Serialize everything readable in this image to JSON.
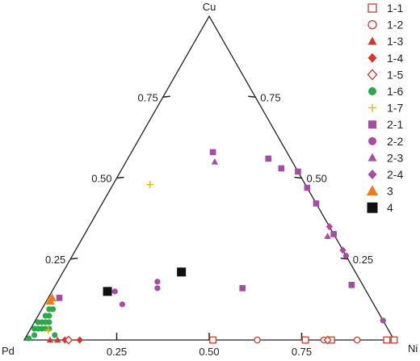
{
  "chart_data": {
    "type": "ternary-scatter",
    "vertices": {
      "top": "Cu",
      "left": "Pd",
      "right": "Ni"
    },
    "ticks": [
      0.25,
      0.5,
      0.75
    ],
    "tick_labels": {
      "left_edge": [
        "0.25",
        "0.50",
        "0.75"
      ],
      "right_edge": [
        "0.75",
        "0.50",
        "0.25"
      ],
      "bottom_edge": [
        "0.25",
        "0.50",
        "0.75"
      ]
    },
    "series": [
      {
        "name": "1-1",
        "marker": "square-open",
        "color": "#d9362b",
        "points": [
          {
            "Pd": 0.49,
            "Cu": 0.0,
            "Ni": 0.51
          },
          {
            "Pd": 0.24,
            "Cu": 0.0,
            "Ni": 0.76
          },
          {
            "Pd": 0.17,
            "Cu": 0.0,
            "Ni": 0.83
          },
          {
            "Pd": 0.02,
            "Cu": 0.0,
            "Ni": 0.98
          },
          {
            "Pd": 0.0,
            "Cu": 0.0,
            "Ni": 1.0
          }
        ]
      },
      {
        "name": "1-2",
        "marker": "circle-open",
        "color": "#d9362b",
        "points": [
          {
            "Pd": 0.37,
            "Cu": 0.0,
            "Ni": 0.63
          },
          {
            "Pd": 0.19,
            "Cu": 0.0,
            "Ni": 0.81
          },
          {
            "Pd": 0.1,
            "Cu": 0.0,
            "Ni": 0.9
          }
        ]
      },
      {
        "name": "1-3",
        "marker": "triangle",
        "color": "#d9362b",
        "points": [
          {
            "Pd": 0.93,
            "Cu": 0.0,
            "Ni": 0.07
          },
          {
            "Pd": 0.91,
            "Cu": 0.0,
            "Ni": 0.09
          }
        ]
      },
      {
        "name": "1-4",
        "marker": "diamond",
        "color": "#d9362b",
        "points": [
          {
            "Pd": 0.89,
            "Cu": 0.0,
            "Ni": 0.11
          },
          {
            "Pd": 0.85,
            "Cu": 0.0,
            "Ni": 0.15
          }
        ]
      },
      {
        "name": "1-5",
        "marker": "diamond-open",
        "color": "#d9362b",
        "points": [
          {
            "Pd": 0.88,
            "Cu": 0.0,
            "Ni": 0.12
          },
          {
            "Pd": 0.18,
            "Cu": 0.0,
            "Ni": 0.82
          }
        ]
      },
      {
        "name": "1-6",
        "marker": "circle",
        "color": "#2aa84a",
        "points": [
          {
            "Pd": 0.985,
            "Cu": 0.005,
            "Ni": 0.01
          },
          {
            "Pd": 0.965,
            "Cu": 0.015,
            "Ni": 0.02
          },
          {
            "Pd": 0.955,
            "Cu": 0.035,
            "Ni": 0.01
          },
          {
            "Pd": 0.945,
            "Cu": 0.035,
            "Ni": 0.02
          },
          {
            "Pd": 0.935,
            "Cu": 0.035,
            "Ni": 0.03
          },
          {
            "Pd": 0.925,
            "Cu": 0.035,
            "Ni": 0.04
          },
          {
            "Pd": 0.915,
            "Cu": 0.035,
            "Ni": 0.05
          },
          {
            "Pd": 0.91,
            "Cu": 0.015,
            "Ni": 0.075
          },
          {
            "Pd": 0.935,
            "Cu": 0.055,
            "Ni": 0.01
          },
          {
            "Pd": 0.925,
            "Cu": 0.055,
            "Ni": 0.02
          },
          {
            "Pd": 0.915,
            "Cu": 0.055,
            "Ni": 0.03
          },
          {
            "Pd": 0.905,
            "Cu": 0.055,
            "Ni": 0.04
          },
          {
            "Pd": 0.905,
            "Cu": 0.075,
            "Ni": 0.02
          },
          {
            "Pd": 0.895,
            "Cu": 0.075,
            "Ni": 0.03
          },
          {
            "Pd": 0.885,
            "Cu": 0.095,
            "Ni": 0.02
          },
          {
            "Pd": 0.875,
            "Cu": 0.095,
            "Ni": 0.03
          }
        ]
      },
      {
        "name": "1-7",
        "marker": "plus",
        "color": "#f0b400",
        "points": [
          {
            "Pd": 0.42,
            "Cu": 0.48,
            "Ni": 0.1
          },
          {
            "Pd": 0.92,
            "Cu": 0.03,
            "Ni": 0.05
          },
          {
            "Pd": 0.865,
            "Cu": 0.125,
            "Ni": 0.01
          }
        ]
      },
      {
        "name": "2-1",
        "marker": "square",
        "color": "#a94aa8",
        "points": [
          {
            "Pd": 0.2,
            "Cu": 0.58,
            "Ni": 0.22
          },
          {
            "Pd": 0.06,
            "Cu": 0.56,
            "Ni": 0.38
          },
          {
            "Pd": 0.04,
            "Cu": 0.53,
            "Ni": 0.43
          },
          {
            "Pd": 0.0,
            "Cu": 0.52,
            "Ni": 0.48
          },
          {
            "Pd": 0.0,
            "Cu": 0.47,
            "Ni": 0.53
          },
          {
            "Pd": -0.02,
            "Cu": 0.43,
            "Ni": 0.59
          },
          {
            "Pd": -0.04,
            "Cu": 0.34,
            "Ni": 0.7
          },
          {
            "Pd": 0.03,
            "Cu": 0.17,
            "Ni": 0.8
          },
          {
            "Pd": 0.84,
            "Cu": 0.13,
            "Ni": 0.03
          },
          {
            "Pd": 0.33,
            "Cu": 0.16,
            "Ni": 0.51
          }
        ]
      },
      {
        "name": "2-2",
        "marker": "circle",
        "color": "#a94aa8",
        "points": [
          {
            "Pd": 0.68,
            "Cu": 0.15,
            "Ni": 0.17
          },
          {
            "Pd": 0.68,
            "Cu": 0.11,
            "Ni": 0.21
          },
          {
            "Pd": 0.55,
            "Cu": 0.18,
            "Ni": 0.27
          },
          {
            "Pd": 0.56,
            "Cu": 0.16,
            "Ni": 0.28
          },
          {
            "Pd": 0.0,
            "Cu": 0.26,
            "Ni": 0.74
          },
          {
            "Pd": 0.0,
            "Cu": 0.06,
            "Ni": 0.94
          }
        ]
      },
      {
        "name": "2-3",
        "marker": "triangle",
        "color": "#a94aa8",
        "points": [
          {
            "Pd": 0.21,
            "Cu": 0.55,
            "Ni": 0.24
          },
          {
            "Pd": 0.02,
            "Cu": 0.32,
            "Ni": 0.66
          }
        ]
      },
      {
        "name": "2-4",
        "marker": "diamond",
        "color": "#a94aa8",
        "points": [
          {
            "Pd": 0.0,
            "Cu": 0.35,
            "Ni": 0.65
          },
          {
            "Pd": -0.01,
            "Cu": 0.28,
            "Ni": 0.73
          }
        ]
      },
      {
        "name": "3",
        "marker": "triangle",
        "color": "#f07a1a",
        "points": [
          {
            "Pd": 0.87,
            "Cu": 0.12,
            "Ni": 0.01
          },
          {
            "Pd": 0.86,
            "Cu": 0.13,
            "Ni": 0.01
          }
        ]
      },
      {
        "name": "4",
        "marker": "square",
        "color": "#111111",
        "points": [
          {
            "Pd": 0.7,
            "Cu": 0.15,
            "Ni": 0.15
          },
          {
            "Pd": 0.47,
            "Cu": 0.21,
            "Ni": 0.32
          }
        ]
      }
    ],
    "legend_position": "right"
  }
}
